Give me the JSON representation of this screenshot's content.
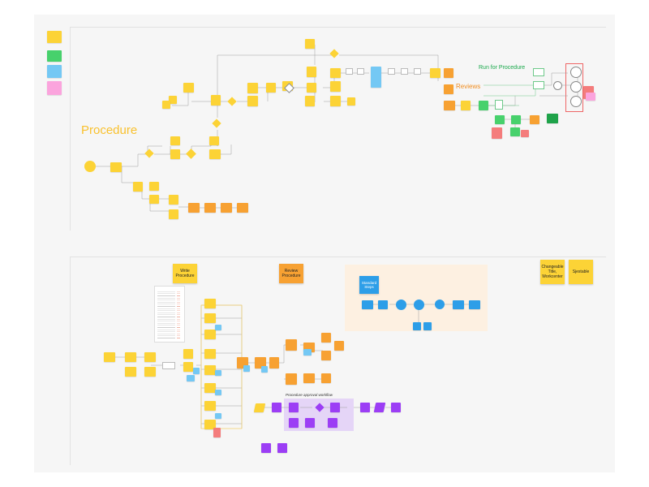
{
  "canvas": {
    "background": "#f6f6f6"
  },
  "sections": {
    "procedure_title": "Procedure",
    "reviews_title": "Reviews",
    "run_title": "Run for Procedure",
    "write_procedure": "Write Procedure",
    "review_procedure": "Review Procedure",
    "standard_steps": "Standard Steps",
    "changeable": "Changeable Title, Workcenter",
    "sjpr": "Sjestable",
    "approval_workflow": "Procedure approval workflow"
  },
  "colors": {
    "procedure_title": "#f9c12e",
    "reviews_title": "#f08c1e",
    "run_title": "#18a84a",
    "approval_region": "#e5d5f7",
    "standard_region": "#fdf0e1"
  }
}
